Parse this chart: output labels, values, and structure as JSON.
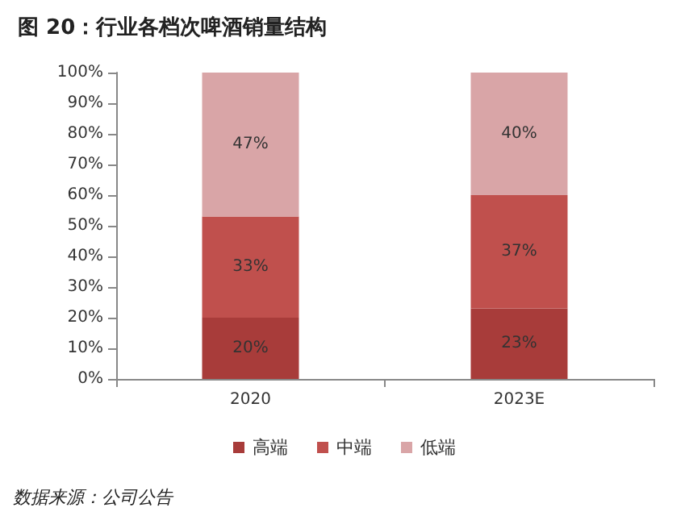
{
  "chart_data": {
    "type": "bar",
    "title": "图 20：行业各档次啤酒销量结构",
    "categories": [
      "2020",
      "2023E"
    ],
    "stacked": true,
    "series": [
      {
        "name": "高端",
        "color": "#a83c3a",
        "values": [
          20,
          23
        ],
        "value_labels": [
          "20%",
          "23%"
        ]
      },
      {
        "name": "中端",
        "color": "#c0504d",
        "values": [
          33,
          37
        ],
        "value_labels": [
          "33%",
          "37%"
        ]
      },
      {
        "name": "低端",
        "color": "#d9a5a7",
        "values": [
          47,
          40
        ],
        "value_labels": [
          "47%",
          "40%"
        ]
      }
    ],
    "ylim": [
      0,
      100
    ],
    "yticks": [
      {
        "value": 0,
        "label": "0%"
      },
      {
        "value": 10,
        "label": "10%"
      },
      {
        "value": 20,
        "label": "20%"
      },
      {
        "value": 30,
        "label": "30%"
      },
      {
        "value": 40,
        "label": "40%"
      },
      {
        "value": 50,
        "label": "50%"
      },
      {
        "value": 60,
        "label": "60%"
      },
      {
        "value": 70,
        "label": "70%"
      },
      {
        "value": 80,
        "label": "80%"
      },
      {
        "value": 90,
        "label": "90%"
      },
      {
        "value": 100,
        "label": "100%"
      }
    ],
    "grid": false,
    "legend": "bottom",
    "annotations": [
      "数据来源：公司公告"
    ]
  }
}
